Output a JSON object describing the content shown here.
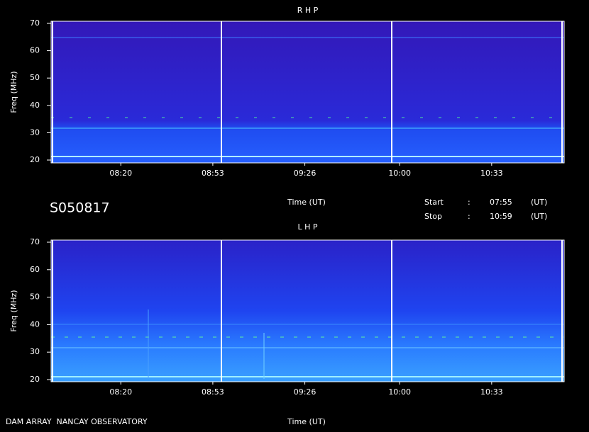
{
  "chart_data": [
    {
      "type": "spectrogram",
      "title": "R H P",
      "xlabel": "Time (UT)",
      "ylabel": "Freq (MHz)",
      "xlim": [
        475,
        659
      ],
      "xticks": [
        {
          "value": 500,
          "label": "08:20"
        },
        {
          "value": 533,
          "label": "08:53"
        },
        {
          "value": 566,
          "label": "09:26"
        },
        {
          "value": 600,
          "label": "10:00"
        },
        {
          "value": 633,
          "label": "10:33"
        }
      ],
      "ylim": [
        20,
        70
      ],
      "yticks": [
        20,
        30,
        40,
        50,
        60,
        70
      ]
    },
    {
      "type": "spectrogram",
      "title": "L H P",
      "xlabel": "Time (UT)",
      "ylabel": "Freq (MHz)",
      "xlim": [
        475,
        659
      ],
      "xticks": [
        {
          "value": 500,
          "label": "08:20"
        },
        {
          "value": 533,
          "label": "08:53"
        },
        {
          "value": 566,
          "label": "09:26"
        },
        {
          "value": 600,
          "label": "10:00"
        },
        {
          "value": 633,
          "label": "10:33"
        }
      ],
      "ylim": [
        20,
        70
      ],
      "yticks": [
        20,
        30,
        40,
        50,
        60,
        70
      ]
    }
  ],
  "observation": {
    "id": "S050817",
    "start_label": "Start",
    "start_sep": ":",
    "start": "07:55",
    "start_unit": "(UT)",
    "stop_label": "Stop",
    "stop_sep": ":",
    "stop": "10:59",
    "stop_unit": "(UT)"
  },
  "footer": "DAM ARRAY  NANCAY OBSERVATORY"
}
